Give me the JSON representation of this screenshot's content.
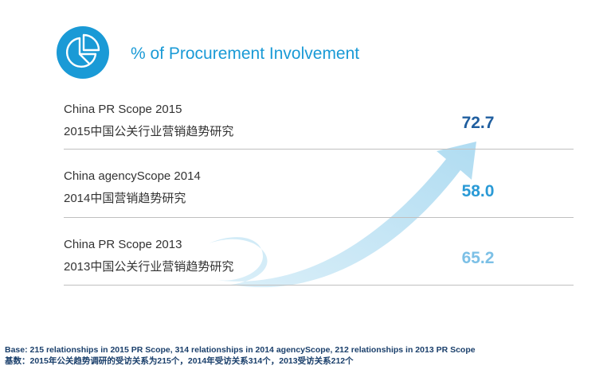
{
  "header": {
    "title": "% of Procurement Involvement",
    "icon": "pie-chart-icon",
    "accent_color": "#1a9ad6"
  },
  "chart_data": {
    "type": "table",
    "rows": [
      {
        "label_en": "China PR Scope 2015",
        "label_zh": "2015中国公关行业营销趋势研究",
        "value": 72.7,
        "display": "72.7",
        "color": "#1f5e9f"
      },
      {
        "label_en": "China agencyScope 2014",
        "label_zh": "2014中国营销趋势研究",
        "value": 58.0,
        "display": "58.0",
        "color": "#2a9ad6"
      },
      {
        "label_en": "China PR Scope 2013",
        "label_zh": "2013中国公关行业营销趋势研究",
        "value": 65.2,
        "display": "65.2",
        "color": "#7cc0e6"
      }
    ],
    "arrow": {
      "from": "2013",
      "to": "2015",
      "direction": "upward"
    }
  },
  "footer": {
    "line1": "Base: 215 relationships in 2015 PR Scope, 314 relationships in 2014 agencyScope, 212 relationships in 2013 PR Scope",
    "line2": "基数：2015年公关趋势调研的受访关系为215个，2014年受访关系314个，2013受访关系212个"
  }
}
